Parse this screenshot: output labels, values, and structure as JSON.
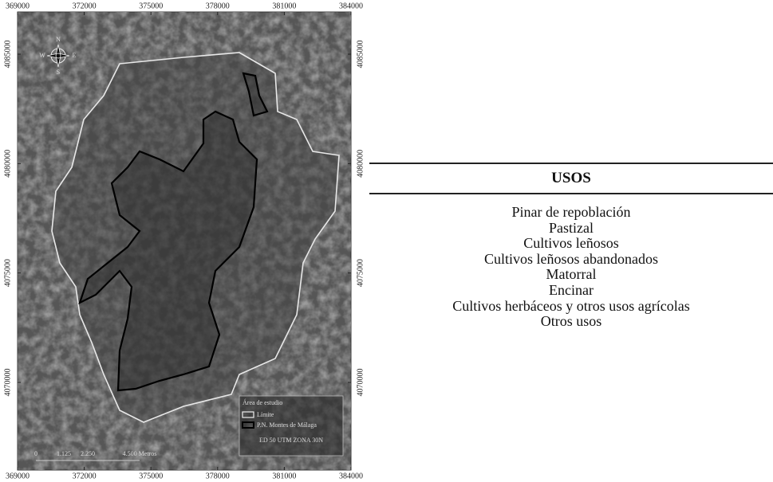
{
  "map": {
    "xticks": [
      369000,
      372000,
      375000,
      378000,
      381000,
      384000
    ],
    "yticks": [
      4085000,
      4080000,
      4075000,
      4070000
    ],
    "compass": {
      "n": "N",
      "s": "S",
      "w": "W",
      "e": "E"
    },
    "legend": {
      "title": "Área de estudio",
      "items": [
        "Límite",
        "P.N. Montes de Málaga"
      ]
    },
    "scale_bar": [
      "0",
      "1.125",
      "2.250",
      "4.500 Metros"
    ],
    "projection": "ED 50 UTM ZONA 30N"
  },
  "table": {
    "header": "USOS",
    "rows": [
      "Pinar de repoblación",
      "Pastizal",
      "Cultivos leñosos",
      "Cultivos leñosos abandonados",
      "Matorral",
      "Encinar",
      "Cultivos herbáceos y otros usos agrícolas",
      "Otros usos"
    ]
  }
}
